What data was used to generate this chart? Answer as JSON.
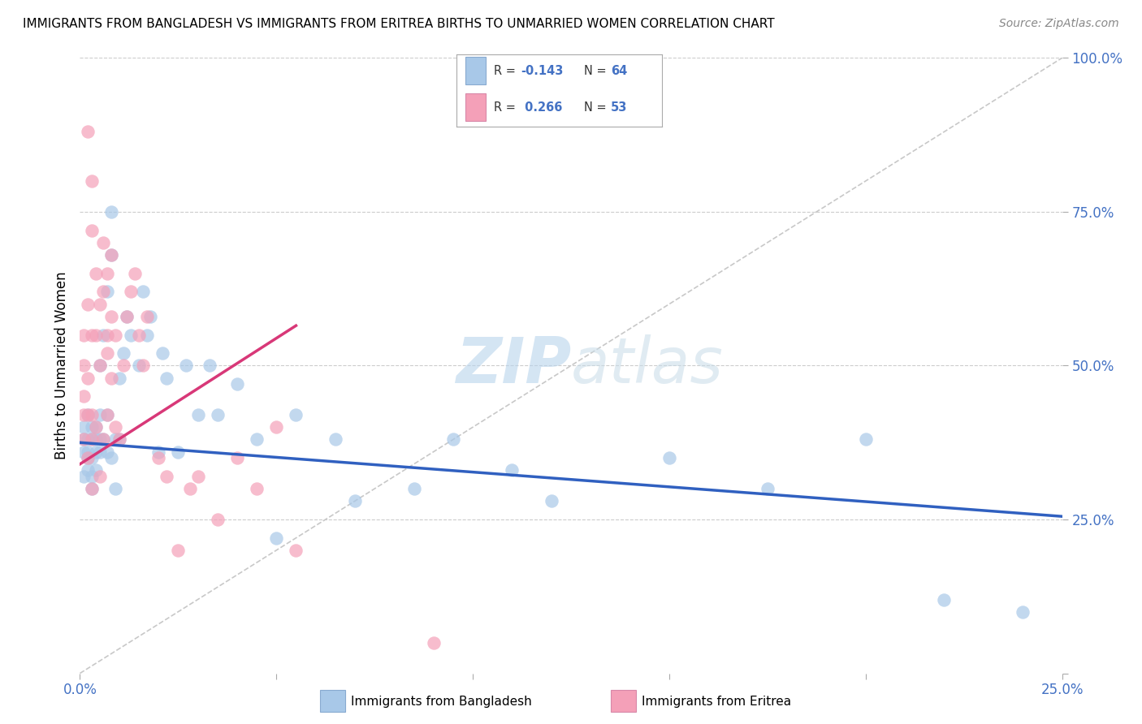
{
  "title": "IMMIGRANTS FROM BANGLADESH VS IMMIGRANTS FROM ERITREA BIRTHS TO UNMARRIED WOMEN CORRELATION CHART",
  "source": "Source: ZipAtlas.com",
  "ylabel": "Births to Unmarried Women",
  "xlim": [
    0.0,
    0.25
  ],
  "ylim": [
    0.0,
    1.0
  ],
  "color_bangladesh": "#a8c8e8",
  "color_eritrea": "#f4a0b8",
  "color_trend_bangladesh": "#3060c0",
  "color_trend_eritrea": "#d83878",
  "color_diagonal": "#c8c8c8",
  "color_axis_labels": "#4472c4",
  "watermark_color": "#c8dff0",
  "bangladesh_x": [
    0.001,
    0.001,
    0.001,
    0.001,
    0.002,
    0.002,
    0.002,
    0.002,
    0.002,
    0.003,
    0.003,
    0.003,
    0.003,
    0.003,
    0.004,
    0.004,
    0.004,
    0.004,
    0.005,
    0.005,
    0.005,
    0.005,
    0.006,
    0.006,
    0.007,
    0.007,
    0.007,
    0.008,
    0.008,
    0.009,
    0.009,
    0.01,
    0.01,
    0.011,
    0.012,
    0.013,
    0.015,
    0.016,
    0.017,
    0.018,
    0.02,
    0.021,
    0.022,
    0.025,
    0.027,
    0.03,
    0.033,
    0.035,
    0.04,
    0.045,
    0.05,
    0.055,
    0.065,
    0.07,
    0.085,
    0.095,
    0.11,
    0.12,
    0.15,
    0.175,
    0.2,
    0.22,
    0.24,
    0.008
  ],
  "bangladesh_y": [
    0.36,
    0.38,
    0.32,
    0.4,
    0.35,
    0.38,
    0.42,
    0.33,
    0.36,
    0.32,
    0.38,
    0.35,
    0.4,
    0.3,
    0.36,
    0.38,
    0.33,
    0.4,
    0.5,
    0.36,
    0.42,
    0.38,
    0.38,
    0.55,
    0.62,
    0.42,
    0.36,
    0.35,
    0.68,
    0.38,
    0.3,
    0.48,
    0.38,
    0.52,
    0.58,
    0.55,
    0.5,
    0.62,
    0.55,
    0.58,
    0.36,
    0.52,
    0.48,
    0.36,
    0.5,
    0.42,
    0.5,
    0.42,
    0.47,
    0.38,
    0.22,
    0.42,
    0.38,
    0.28,
    0.3,
    0.38,
    0.33,
    0.28,
    0.35,
    0.3,
    0.38,
    0.12,
    0.1,
    0.75
  ],
  "eritrea_x": [
    0.001,
    0.001,
    0.001,
    0.001,
    0.001,
    0.002,
    0.002,
    0.002,
    0.002,
    0.003,
    0.003,
    0.003,
    0.003,
    0.003,
    0.003,
    0.004,
    0.004,
    0.004,
    0.005,
    0.005,
    0.005,
    0.006,
    0.006,
    0.006,
    0.007,
    0.007,
    0.007,
    0.007,
    0.008,
    0.008,
    0.008,
    0.009,
    0.009,
    0.01,
    0.011,
    0.012,
    0.013,
    0.014,
    0.015,
    0.016,
    0.017,
    0.02,
    0.022,
    0.025,
    0.028,
    0.03,
    0.035,
    0.04,
    0.045,
    0.05,
    0.055,
    0.09,
    0.002
  ],
  "eritrea_y": [
    0.38,
    0.42,
    0.45,
    0.5,
    0.55,
    0.35,
    0.48,
    0.42,
    0.6,
    0.3,
    0.55,
    0.42,
    0.38,
    0.72,
    0.8,
    0.55,
    0.4,
    0.65,
    0.32,
    0.5,
    0.6,
    0.38,
    0.7,
    0.62,
    0.55,
    0.42,
    0.52,
    0.65,
    0.48,
    0.58,
    0.68,
    0.4,
    0.55,
    0.38,
    0.5,
    0.58,
    0.62,
    0.65,
    0.55,
    0.5,
    0.58,
    0.35,
    0.32,
    0.2,
    0.3,
    0.32,
    0.25,
    0.35,
    0.3,
    0.4,
    0.2,
    0.05,
    0.88
  ],
  "trend_bangladesh_x0": 0.0,
  "trend_bangladesh_x1": 0.25,
  "trend_bangladesh_y0": 0.375,
  "trend_bangladesh_y1": 0.255,
  "trend_eritrea_x0": 0.0,
  "trend_eritrea_x1": 0.055,
  "trend_eritrea_y0": 0.34,
  "trend_eritrea_y1": 0.565
}
